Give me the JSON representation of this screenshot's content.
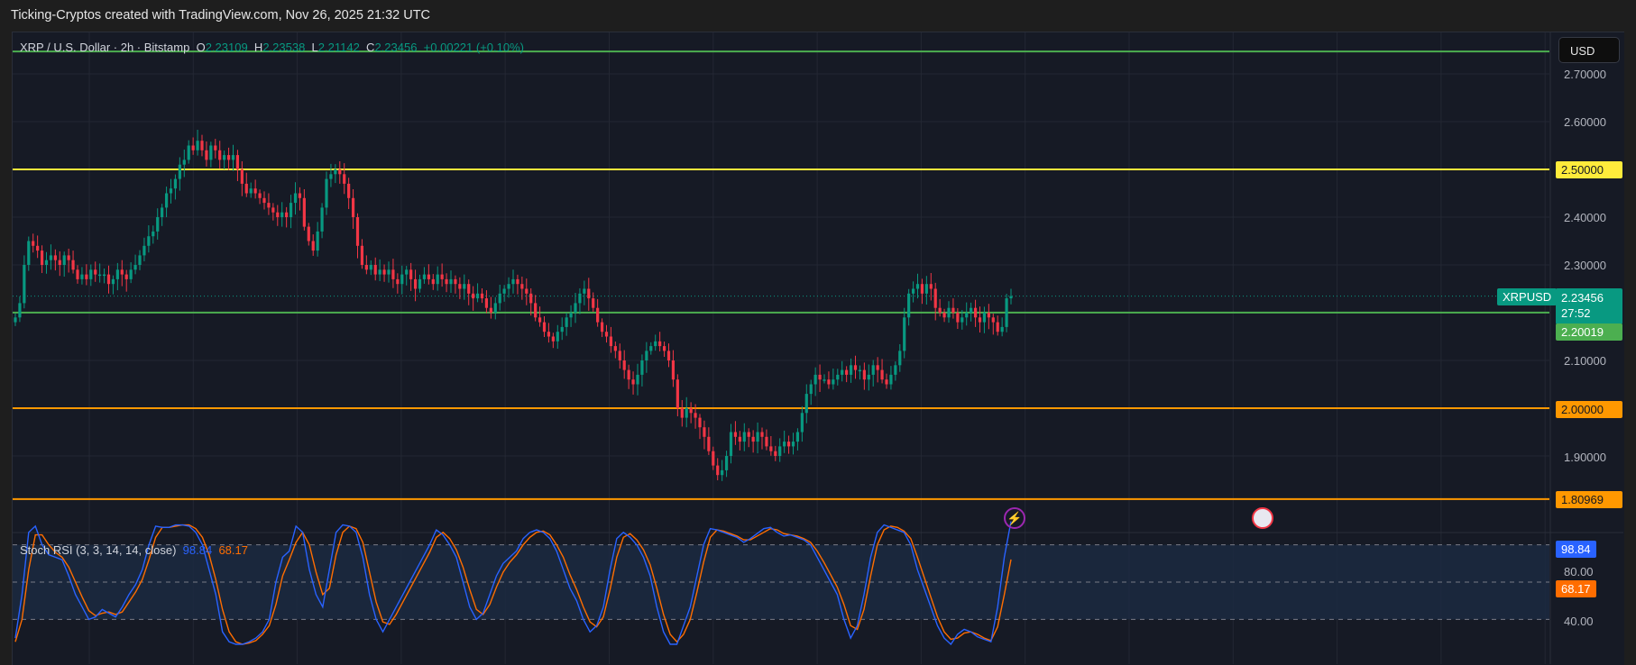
{
  "attribution": "Ticking-Cryptos created with TradingView.com, Nov 26, 2025 21:32 UTC",
  "legend": {
    "symbol": "XRP / U.S. Dollar · 2h · Bitstamp",
    "o_label": "O",
    "o": "2.23109",
    "h_label": "H",
    "h": "2.23538",
    "l_label": "L",
    "l": "2.21142",
    "c_label": "C",
    "c": "2.23456",
    "change": "+0.00221 (+0.10%)"
  },
  "currency_button": "USD",
  "price_axis": {
    "ticks": [
      "2.70000",
      "2.60000",
      "2.40000",
      "2.30000",
      "2.10000",
      "1.90000"
    ],
    "tick_values": [
      2.7,
      2.6,
      2.4,
      2.3,
      2.1,
      1.9
    ],
    "tag_2_5": "2.50000",
    "tag_2_0": "2.00000",
    "tag_181": "1.80969",
    "tag_220": "2.20019",
    "current_price": "2.23456",
    "countdown": "27:52",
    "symbol_tag": "XRPUSD"
  },
  "stoch": {
    "label": "Stoch RSI (3, 3, 14, 14, close)",
    "k_value": "98.84",
    "d_value": "68.17",
    "ticks": [
      "80.00",
      "40.00"
    ]
  },
  "colors": {
    "up": "#089981",
    "down": "#f23645",
    "yellow": "#ffeb3b",
    "orange": "#ff9800",
    "green": "#4caf50",
    "k": "#2962ff",
    "d": "#ff6d00"
  },
  "chart_data": {
    "type": "candlestick",
    "title": "XRP / U.S. Dollar · 2h · Bitstamp",
    "ylim": [
      1.77,
      2.77
    ],
    "horizontal_levels": [
      {
        "price": 2.747,
        "color": "#4caf50"
      },
      {
        "price": 2.5,
        "color": "#ffeb3b"
      },
      {
        "price": 2.20019,
        "color": "#4caf50"
      },
      {
        "price": 2.0,
        "color": "#ff9800"
      },
      {
        "price": 1.80969,
        "color": "#ff9800"
      }
    ],
    "last_close": 2.23456,
    "closes": [
      2.19,
      2.22,
      2.3,
      2.35,
      2.34,
      2.33,
      2.3,
      2.31,
      2.32,
      2.31,
      2.3,
      2.32,
      2.31,
      2.29,
      2.27,
      2.28,
      2.27,
      2.29,
      2.28,
      2.28,
      2.28,
      2.26,
      2.27,
      2.29,
      2.28,
      2.27,
      2.29,
      2.3,
      2.32,
      2.34,
      2.36,
      2.37,
      2.4,
      2.42,
      2.45,
      2.46,
      2.48,
      2.51,
      2.52,
      2.55,
      2.54,
      2.56,
      2.54,
      2.52,
      2.55,
      2.54,
      2.52,
      2.53,
      2.52,
      2.53,
      2.5,
      2.47,
      2.45,
      2.46,
      2.45,
      2.44,
      2.43,
      2.42,
      2.41,
      2.4,
      2.41,
      2.4,
      2.43,
      2.45,
      2.44,
      2.38,
      2.35,
      2.33,
      2.37,
      2.42,
      2.48,
      2.49,
      2.5,
      2.49,
      2.47,
      2.44,
      2.4,
      2.34,
      2.3,
      2.29,
      2.3,
      2.28,
      2.29,
      2.28,
      2.29,
      2.27,
      2.26,
      2.28,
      2.29,
      2.27,
      2.25,
      2.27,
      2.28,
      2.27,
      2.26,
      2.28,
      2.27,
      2.26,
      2.27,
      2.26,
      2.25,
      2.26,
      2.24,
      2.23,
      2.24,
      2.23,
      2.21,
      2.2,
      2.22,
      2.24,
      2.25,
      2.26,
      2.27,
      2.26,
      2.25,
      2.24,
      2.22,
      2.19,
      2.18,
      2.16,
      2.15,
      2.14,
      2.16,
      2.17,
      2.19,
      2.2,
      2.22,
      2.24,
      2.25,
      2.23,
      2.21,
      2.18,
      2.16,
      2.15,
      2.13,
      2.12,
      2.1,
      2.08,
      2.06,
      2.05,
      2.07,
      2.1,
      2.12,
      2.13,
      2.14,
      2.13,
      2.12,
      2.1,
      2.06,
      2.0,
      1.98,
      2.0,
      1.99,
      1.98,
      1.96,
      1.94,
      1.91,
      1.88,
      1.86,
      1.87,
      1.9,
      1.95,
      1.94,
      1.93,
      1.95,
      1.94,
      1.93,
      1.95,
      1.94,
      1.92,
      1.91,
      1.9,
      1.92,
      1.93,
      1.92,
      1.93,
      1.95,
      1.99,
      2.03,
      2.05,
      2.07,
      2.06,
      2.06,
      2.05,
      2.06,
      2.07,
      2.08,
      2.07,
      2.09,
      2.08,
      2.08,
      2.06,
      2.07,
      2.09,
      2.08,
      2.06,
      2.05,
      2.07,
      2.09,
      2.12,
      2.19,
      2.24,
      2.25,
      2.26,
      2.24,
      2.26,
      2.25,
      2.21,
      2.2,
      2.19,
      2.21,
      2.2,
      2.18,
      2.19,
      2.2,
      2.21,
      2.19,
      2.18,
      2.2,
      2.19,
      2.18,
      2.16,
      2.17,
      2.23,
      2.23456
    ],
    "stoch_k": [
      5,
      40,
      90,
      95,
      80,
      72,
      70,
      68,
      55,
      40,
      30,
      20,
      22,
      28,
      25,
      22,
      30,
      40,
      48,
      60,
      80,
      95,
      94,
      94,
      96,
      96,
      95,
      90,
      80,
      60,
      40,
      10,
      2,
      0,
      0,
      2,
      5,
      10,
      20,
      50,
      70,
      75,
      95,
      90,
      60,
      40,
      30,
      60,
      90,
      96,
      95,
      90,
      70,
      40,
      20,
      10,
      20,
      30,
      40,
      50,
      60,
      70,
      80,
      92,
      88,
      80,
      70,
      50,
      30,
      20,
      25,
      40,
      55,
      65,
      70,
      75,
      85,
      90,
      92,
      90,
      85,
      75,
      60,
      45,
      35,
      20,
      10,
      15,
      30,
      60,
      85,
      90,
      86,
      80,
      70,
      55,
      30,
      10,
      0,
      0,
      15,
      30,
      55,
      80,
      93,
      92,
      90,
      88,
      86,
      82,
      85,
      89,
      93,
      94,
      90,
      87,
      88,
      86,
      84,
      80,
      70,
      60,
      50,
      40,
      20,
      5,
      15,
      40,
      70,
      90,
      96,
      94,
      92,
      90,
      80,
      60,
      45,
      30,
      15,
      5,
      0,
      8,
      12,
      10,
      6,
      4,
      2,
      30,
      70,
      98.84
    ],
    "stoch_d": [
      2,
      20,
      60,
      88,
      88,
      80,
      74,
      70,
      62,
      50,
      38,
      27,
      23,
      25,
      26,
      24,
      26,
      34,
      42,
      52,
      68,
      86,
      94,
      94,
      95,
      96,
      96,
      93,
      86,
      72,
      52,
      28,
      10,
      2,
      0,
      1,
      3,
      8,
      15,
      32,
      55,
      68,
      82,
      90,
      80,
      58,
      40,
      45,
      72,
      90,
      95,
      93,
      82,
      58,
      34,
      18,
      16,
      24,
      34,
      44,
      54,
      64,
      74,
      86,
      90,
      85,
      76,
      62,
      44,
      28,
      24,
      32,
      46,
      58,
      66,
      72,
      80,
      86,
      90,
      91,
      88,
      80,
      70,
      56,
      44,
      30,
      18,
      14,
      22,
      44,
      70,
      86,
      89,
      84,
      76,
      64,
      45,
      24,
      8,
      2,
      8,
      20,
      42,
      66,
      86,
      92,
      91,
      89,
      87,
      84,
      84,
      87,
      90,
      93,
      92,
      89,
      88,
      87,
      85,
      82,
      75,
      66,
      56,
      46,
      32,
      15,
      12,
      28,
      55,
      80,
      92,
      95,
      94,
      91,
      85,
      70,
      54,
      38,
      22,
      10,
      4,
      5,
      9,
      10,
      8,
      5,
      3,
      14,
      40,
      68.17
    ]
  }
}
